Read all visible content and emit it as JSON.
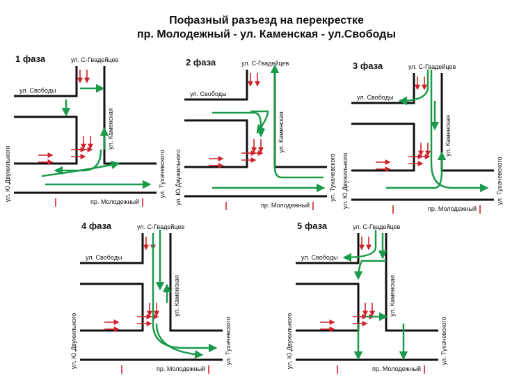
{
  "header": {
    "title": [
      "Пофазный разъезд на перекрестке",
      "пр. Молодежный - ул. Каменская - ул.Свободы"
    ]
  },
  "phases": [
    {
      "label": "1 фаза",
      "streets": {
        "north": "ул. С-Гвадейцев",
        "west_upper": "ул. Свободы",
        "east_vertical": "ул. Каменская",
        "west": "ул. Ю.Двужильного",
        "east": "ул. Тухачевского",
        "south": "пр. Молодежный"
      }
    },
    {
      "label": "2 фаза",
      "streets": {
        "north": "ул. С-Гвадейцев",
        "west_upper": "ул. Свободы",
        "east_vertical": "ул. Каменская",
        "west": "ул. Ю.Двужильного",
        "east": "ул. Тухачевского",
        "south": "пр. Молодежный"
      }
    },
    {
      "label": "3 фаза",
      "streets": {
        "north": "ул. С-Гвадейцев",
        "west_upper": "ул. Свободы",
        "east_vertical": "ул. Каменская",
        "west": "ул. Ю.Двужильного",
        "east": "ул. Тухачевского",
        "south": "пр. Молодежный"
      }
    },
    {
      "label": "4 фаза",
      "streets": {
        "north": "ул. С-Гвадейцев",
        "west_upper": "ул. Свободы",
        "east_vertical": "ул. Каменская",
        "west": "ул. Ю.Двужильного",
        "east": "ул. Тухачевского",
        "south": "пр. Молодежный"
      }
    },
    {
      "label": "5 фаза",
      "streets": {
        "north": "ул. С-Гвадейцев",
        "west_upper": "ул. Свободы",
        "east_vertical": "ул. Каменская",
        "west": "ул. Ю.Двужильного",
        "east": "ул. Тухачевского",
        "south": "пр. Молодежный"
      }
    }
  ]
}
